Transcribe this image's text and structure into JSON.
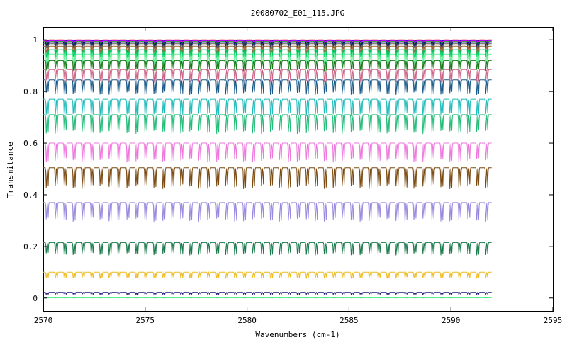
{
  "chart_data": {
    "type": "line",
    "title": "20080702_E01_115.JPG",
    "xlabel": "Wavenumbers (cm-1)",
    "ylabel": "Transmitance",
    "xlim": [
      2570,
      2595
    ],
    "ylim": [
      -0.05,
      1.05
    ],
    "x_ticks": [
      2570,
      2575,
      2580,
      2585,
      2590,
      2595
    ],
    "y_ticks": [
      0,
      0.2,
      0.4,
      0.6,
      0.8,
      1
    ],
    "y_tick_labels": [
      "0",
      "0.2",
      "0.4",
      "0.6",
      "0.8",
      "1"
    ],
    "grid": false,
    "legend": "none",
    "x_range_data": [
      2570,
      2592
    ],
    "line_spacing_cm1": 0.44,
    "series": [
      {
        "color": "#ff0000",
        "baseline": 1.0,
        "depth": 0.004
      },
      {
        "color": "#0000ff",
        "baseline": 0.998,
        "depth": 0.008
      },
      {
        "color": "#ff00ff",
        "baseline": 0.996,
        "depth": 0.01
      },
      {
        "color": "#00aa00",
        "baseline": 0.993,
        "depth": 0.015
      },
      {
        "color": "#000080",
        "baseline": 0.99,
        "depth": 0.02
      },
      {
        "color": "#555555",
        "baseline": 0.985,
        "depth": 0.025
      },
      {
        "color": "#996633",
        "baseline": 0.975,
        "depth": 0.035
      },
      {
        "color": "#00cc66",
        "baseline": 0.962,
        "depth": 0.04
      },
      {
        "color": "#66ee99",
        "baseline": 0.945,
        "depth": 0.05
      },
      {
        "color": "#1a7a1a",
        "baseline": 0.92,
        "depth": 0.05
      },
      {
        "color": "#cc6688",
        "baseline": 0.885,
        "depth": 0.06
      },
      {
        "color": "#1a5a8a",
        "baseline": 0.845,
        "depth": 0.07
      },
      {
        "color": "#22bbbb",
        "baseline": 0.77,
        "depth": 0.08
      },
      {
        "color": "#22bb77",
        "baseline": 0.71,
        "depth": 0.09
      },
      {
        "color": "#ee77dd",
        "baseline": 0.6,
        "depth": 0.09
      },
      {
        "color": "#7a4a10",
        "baseline": 0.505,
        "depth": 0.1
      },
      {
        "color": "#9988dd",
        "baseline": 0.37,
        "depth": 0.09
      },
      {
        "color": "#1a7a4a",
        "baseline": 0.215,
        "depth": 0.06
      },
      {
        "color": "#eebb22",
        "baseline": 0.1,
        "depth": 0.03
      },
      {
        "color": "#1a1a7a",
        "baseline": 0.022,
        "depth": 0.01
      },
      {
        "color": "#cc6622",
        "baseline": 0.003,
        "depth": 0.002
      },
      {
        "color": "#44ee88",
        "baseline": 0.001,
        "depth": 0.001
      }
    ]
  }
}
